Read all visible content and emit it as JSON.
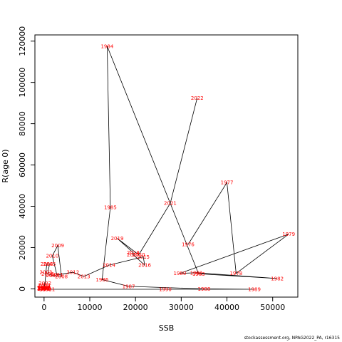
{
  "footnote": "stockassessment.org, NPAG2022_PA, r16315",
  "chart_data": {
    "type": "line",
    "xlabel": "SSB",
    "ylabel": "R(age 0)",
    "xlim": [
      -2000,
      55500
    ],
    "ylim": [
      -4000,
      123000
    ],
    "x_ticks": [
      0,
      10000,
      20000,
      30000,
      40000,
      50000
    ],
    "y_ticks": [
      0,
      20000,
      40000,
      60000,
      80000,
      100000,
      120000
    ],
    "line_color": "#000000",
    "label_color": "#ff0000",
    "grid": false,
    "points": [
      {
        "year": "1976",
        "x": 31500,
        "y": 21500
      },
      {
        "year": "1977",
        "x": 40000,
        "y": 51500
      },
      {
        "year": "1978",
        "x": 42000,
        "y": 7500
      },
      {
        "year": "1979",
        "x": 53500,
        "y": 26500
      },
      {
        "year": "1980",
        "x": 29700,
        "y": 7500
      },
      {
        "year": "1981",
        "x": 33300,
        "y": 7800
      },
      {
        "year": "1982",
        "x": 51000,
        "y": 5000
      },
      {
        "year": "1983",
        "x": 33800,
        "y": 7300
      },
      {
        "year": "1984",
        "x": 13800,
        "y": 117500
      },
      {
        "year": "1985",
        "x": 14500,
        "y": 39500
      },
      {
        "year": "1986",
        "x": 12700,
        "y": 4500
      },
      {
        "year": "1987",
        "x": 18500,
        "y": 1200
      },
      {
        "year": "1988",
        "x": 35000,
        "y": 0
      },
      {
        "year": "1989",
        "x": 46000,
        "y": -200
      },
      {
        "year": "1990",
        "x": 26500,
        "y": -200
      },
      {
        "year": "1991",
        "x": 1000,
        "y": -200
      },
      {
        "year": "1992",
        "x": 300,
        "y": -200
      },
      {
        "year": "1993",
        "x": -100,
        "y": 0
      },
      {
        "year": "1994",
        "x": -200,
        "y": 200
      },
      {
        "year": "1995",
        "x": -150,
        "y": 400
      },
      {
        "year": "1996",
        "x": -250,
        "y": 300
      },
      {
        "year": "1997",
        "x": 0,
        "y": 500
      },
      {
        "year": "1998",
        "x": -100,
        "y": 700
      },
      {
        "year": "1999",
        "x": 100,
        "y": 300
      },
      {
        "year": "2000",
        "x": 0,
        "y": 1200
      },
      {
        "year": "2001",
        "x": 100,
        "y": 1800
      },
      {
        "year": "2002",
        "x": 200,
        "y": 2800
      },
      {
        "year": "2003",
        "x": 400,
        "y": 8000
      },
      {
        "year": "2004",
        "x": 600,
        "y": 12000
      },
      {
        "year": "2005",
        "x": 1200,
        "y": 12000
      },
      {
        "year": "2006",
        "x": 800,
        "y": 7300
      },
      {
        "year": "2007",
        "x": 1800,
        "y": 6500
      },
      {
        "year": "2008",
        "x": 3800,
        "y": 6000
      },
      {
        "year": "2009",
        "x": 3000,
        "y": 21000
      },
      {
        "year": "2010",
        "x": 1800,
        "y": 16000
      },
      {
        "year": "2011",
        "x": 2800,
        "y": 6800
      },
      {
        "year": "2012",
        "x": 6300,
        "y": 8000
      },
      {
        "year": "2013",
        "x": 8700,
        "y": 6000
      },
      {
        "year": "2014",
        "x": 14200,
        "y": 11500
      },
      {
        "year": "2015",
        "x": 21700,
        "y": 15500
      },
      {
        "year": "2016",
        "x": 22000,
        "y": 11500
      },
      {
        "year": "2017",
        "x": 19500,
        "y": 16500
      },
      {
        "year": "2018",
        "x": 19500,
        "y": 17500
      },
      {
        "year": "2019",
        "x": 16000,
        "y": 24500
      },
      {
        "year": "2020",
        "x": 20700,
        "y": 16500
      },
      {
        "year": "2021",
        "x": 27600,
        "y": 41500
      },
      {
        "year": "2022",
        "x": 33500,
        "y": 92500
      }
    ]
  }
}
